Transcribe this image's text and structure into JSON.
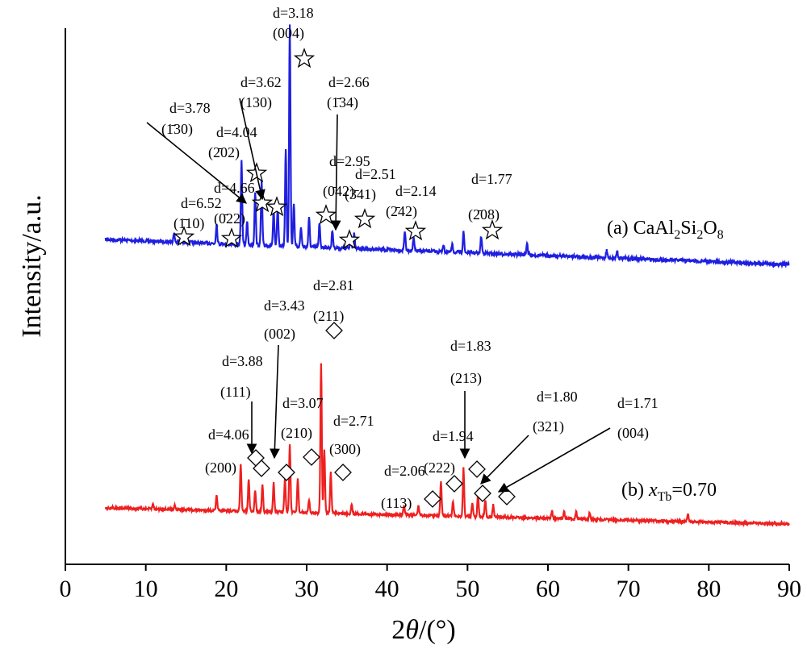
{
  "chart_data": {
    "type": "line",
    "xlabel_prefix": "2",
    "xlabel_theta": "θ",
    "xlabel_suffix": "/(°)",
    "ylabel": "Intensity/a.u.",
    "xlim": [
      0,
      90
    ],
    "xticks": [
      0,
      10,
      20,
      30,
      40,
      50,
      60,
      70,
      80,
      90
    ],
    "grid": false,
    "colors": {
      "a": "#1f1fe0",
      "b": "#ee2020"
    },
    "series": [
      {
        "key": "a",
        "legend_main": "(a) CaAl",
        "legend_sub1": "2",
        "legend_mid": "Si",
        "legend_sub2": "2",
        "legend_o": "O",
        "legend_sub3": "8",
        "peaks": [
          [
            13.5,
            0.04
          ],
          [
            18.8,
            0.08
          ],
          [
            21.9,
            0.35
          ],
          [
            22.6,
            0.1
          ],
          [
            23.6,
            0.22
          ],
          [
            24.4,
            0.26
          ],
          [
            25.9,
            0.14
          ],
          [
            26.4,
            0.16
          ],
          [
            27.4,
            0.4
          ],
          [
            27.9,
            0.92
          ],
          [
            28.4,
            0.18
          ],
          [
            29.3,
            0.08
          ],
          [
            30.3,
            0.12
          ],
          [
            31.6,
            0.1
          ],
          [
            33.2,
            0.07
          ],
          [
            35.5,
            0.05
          ],
          [
            35.9,
            0.06
          ],
          [
            42.2,
            0.08
          ],
          [
            43.3,
            0.05
          ],
          [
            47.0,
            0.03
          ],
          [
            48.1,
            0.03
          ],
          [
            49.5,
            0.09
          ],
          [
            51.7,
            0.07
          ],
          [
            57.4,
            0.05
          ],
          [
            67.3,
            0.03
          ],
          [
            68.6,
            0.03
          ]
        ],
        "markers": [
          [
            14.5,
            3
          ],
          [
            20.7,
            3
          ],
          [
            23.9,
            20
          ],
          [
            24.2,
            17
          ],
          [
            26.5,
            8
          ],
          [
            29.8,
            70
          ],
          [
            32.4,
            8
          ],
          [
            37.2,
            5
          ],
          [
            35.3,
            0
          ],
          [
            43.5,
            2
          ],
          [
            53.0,
            2
          ]
        ],
        "marker_shape": "star"
      },
      {
        "key": "b",
        "legend_main": "(b) ",
        "legend_italic": "x",
        "legend_sub": "Tb",
        "legend_rest": "=0.70",
        "peaks": [
          [
            10.9,
            0.02
          ],
          [
            13.6,
            0.02
          ],
          [
            18.8,
            0.06
          ],
          [
            21.8,
            0.19
          ],
          [
            22.8,
            0.13
          ],
          [
            23.6,
            0.09
          ],
          [
            24.5,
            0.11
          ],
          [
            25.9,
            0.12
          ],
          [
            27.3,
            0.14
          ],
          [
            27.9,
            0.28
          ],
          [
            28.9,
            0.14
          ],
          [
            30.3,
            0.05
          ],
          [
            31.8,
            0.62
          ],
          [
            32.2,
            0.26
          ],
          [
            33.0,
            0.17
          ],
          [
            35.6,
            0.04
          ],
          [
            42.1,
            0.04
          ],
          [
            43.9,
            0.04
          ],
          [
            46.7,
            0.14
          ],
          [
            48.2,
            0.06
          ],
          [
            49.5,
            0.2
          ],
          [
            50.6,
            0.06
          ],
          [
            51.3,
            0.09
          ],
          [
            52.2,
            0.07
          ],
          [
            53.2,
            0.05
          ],
          [
            60.5,
            0.03
          ],
          [
            62.0,
            0.03
          ],
          [
            63.5,
            0.03
          ],
          [
            65.2,
            0.03
          ],
          [
            77.4,
            0.03
          ]
        ],
        "markers": [
          [
            23.2,
            0
          ],
          [
            24.2,
            0
          ],
          [
            27.4,
            0
          ],
          [
            30.6,
            0
          ],
          [
            34.5,
            0
          ],
          [
            45.6,
            0
          ],
          [
            48.3,
            0
          ],
          [
            51.2,
            0
          ],
          [
            52.0,
            0
          ],
          [
            54.9,
            0
          ]
        ],
        "marker_shape": "diamond"
      }
    ]
  },
  "annotations_a": [
    {
      "label": "d=3.18",
      "sub": "(004)",
      "x": 30.0,
      "tx": 30.0
    },
    {
      "label": "d=3.62",
      "sub": "(130)",
      "x": 24.2,
      "tx": 24.2
    },
    {
      "label": "d=2.66",
      "sub": "(1̄34)",
      "x": 33.4,
      "tx": 35.0
    },
    {
      "label": "d=3.78",
      "sub": "(1̄30)",
      "x": 22.2,
      "tx": 15.5
    },
    {
      "label": "d=4.04",
      "sub": "(2̄02)",
      "x": 21.5,
      "tx": 21.5
    },
    {
      "label": "d=2.95",
      "sub": "(0̄42)",
      "x": 32.5,
      "tx": 32.5
    },
    {
      "label": "d=2.51",
      "sub": "(3̄41)",
      "x": 35.6,
      "tx": 35.6
    },
    {
      "label": "d=2.14",
      "sub": "(2̄42)",
      "x": 42.3,
      "tx": 42.3
    },
    {
      "label": "d=1.77",
      "sub": "(2̄08)",
      "x": 53.0,
      "tx": 53.0
    },
    {
      "label": "d=4.66",
      "sub": "(0̄22)",
      "x": 21.0,
      "tx": 21.0
    },
    {
      "label": "d=6.52",
      "sub": "(1̄10)",
      "x": 14.5,
      "tx": 14.5
    }
  ],
  "annotations_b": [
    {
      "label": "d=2.81",
      "sub": "(211)"
    },
    {
      "label": "d=3.43",
      "sub": "(002)"
    },
    {
      "label": "d=3.88",
      "sub": "(111)"
    },
    {
      "label": "d=3.07",
      "sub": "(210)"
    },
    {
      "label": "d=2.71",
      "sub": "(300)"
    },
    {
      "label": "d=4.06",
      "sub": "(200)"
    },
    {
      "label": "d=1.83",
      "sub": "(213)"
    },
    {
      "label": "d=1.80",
      "sub": "(321)"
    },
    {
      "label": "d=1.71",
      "sub": "(004)"
    },
    {
      "label": "d=1.94",
      "sub": "(222)"
    },
    {
      "label": "d=2.06",
      "sub": "(113)"
    }
  ]
}
